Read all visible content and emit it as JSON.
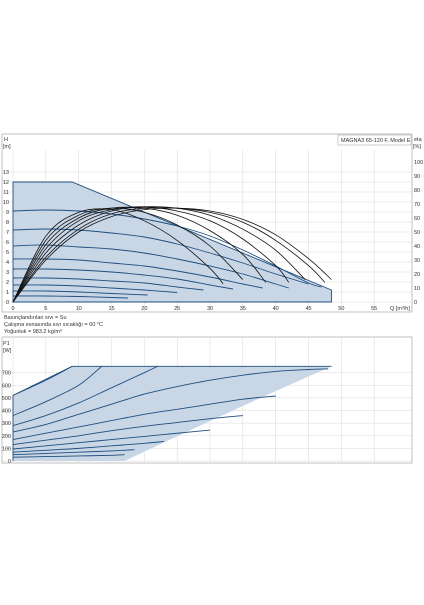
{
  "colors": {
    "fill": "#c9d6e6",
    "curve": "#1f4f7f",
    "eff": "#111111",
    "grid": "#d8d8d8",
    "frame": "#999999"
  },
  "chart_data": [
    {
      "type": "line",
      "title": "MAGNA3 65-120 F, Model E",
      "ylabel": "H",
      "yunit": "[m]",
      "y2label": "eta",
      "y2unit": "[%]",
      "xlabel": "Q [m³/h]",
      "xlim": [
        0,
        60
      ],
      "ylim": [
        0,
        14
      ],
      "y2lim": [
        0,
        100
      ],
      "x_ticks": [
        0,
        5,
        10,
        15,
        20,
        25,
        30,
        35,
        40,
        45,
        50,
        55
      ],
      "y_ticks": [
        0,
        1,
        2,
        3,
        4,
        5,
        6,
        7,
        8,
        9,
        10,
        11,
        12,
        13
      ],
      "y2_ticks": [
        0,
        10,
        20,
        30,
        40,
        50,
        60,
        70,
        80,
        90,
        100
      ],
      "grid": true,
      "envelope": {
        "x": [
          0,
          0,
          9,
          48.5,
          48.5
        ],
        "y": [
          0,
          12,
          12,
          1.2,
          0
        ]
      },
      "pump_curves": [
        {
          "x": [
            0,
            5,
            10,
            15,
            20,
            25,
            30,
            35,
            40,
            45,
            47
          ],
          "y": [
            9.1,
            9.2,
            9.1,
            8.8,
            8.3,
            7.6,
            6.6,
            5.2,
            3.6,
            1.9,
            1.5
          ]
        },
        {
          "x": [
            0,
            5,
            10,
            15,
            20,
            25,
            30,
            35,
            40,
            45
          ],
          "y": [
            7.2,
            7.3,
            7.2,
            6.9,
            6.5,
            5.8,
            4.9,
            3.9,
            2.8,
            1.8
          ]
        },
        {
          "x": [
            0,
            5,
            10,
            15,
            20,
            25,
            30,
            35,
            40,
            42
          ],
          "y": [
            5.6,
            5.7,
            5.5,
            5.3,
            4.9,
            4.3,
            3.6,
            2.8,
            1.8,
            1.4
          ]
        },
        {
          "x": [
            0,
            5,
            10,
            15,
            20,
            25,
            30,
            35,
            38
          ],
          "y": [
            4.3,
            4.3,
            4.2,
            3.9,
            3.6,
            3.1,
            2.5,
            1.8,
            1.4
          ]
        },
        {
          "x": [
            0,
            5,
            10,
            15,
            20,
            25,
            30,
            33.5
          ],
          "y": [
            3.3,
            3.3,
            3.2,
            3.0,
            2.7,
            2.3,
            1.7,
            1.3
          ]
        },
        {
          "x": [
            0,
            5,
            10,
            15,
            20,
            25,
            29
          ],
          "y": [
            2.4,
            2.4,
            2.3,
            2.1,
            1.9,
            1.5,
            1.2
          ]
        },
        {
          "x": [
            0,
            5,
            10,
            15,
            20,
            25
          ],
          "y": [
            1.7,
            1.7,
            1.6,
            1.4,
            1.2,
            0.95
          ]
        },
        {
          "x": [
            0,
            5,
            10,
            15,
            20.5
          ],
          "y": [
            1.1,
            1.1,
            1.0,
            0.85,
            0.7
          ]
        },
        {
          "x": [
            0,
            5,
            10,
            15,
            17.5
          ],
          "y": [
            0.6,
            0.6,
            0.55,
            0.45,
            0.4
          ]
        }
      ],
      "efficiency_curves": [
        {
          "x": [
            0,
            5,
            10,
            15,
            20,
            25,
            30,
            35,
            40,
            45,
            48.5
          ],
          "y": [
            0,
            30,
            50,
            61,
            66,
            67,
            65,
            59,
            48,
            31,
            16
          ]
        },
        {
          "x": [
            0,
            5,
            10,
            15,
            20,
            25,
            30,
            35,
            40,
            45,
            47.5
          ],
          "y": [
            0,
            32,
            52,
            63,
            67,
            67,
            64,
            57,
            44,
            26,
            14
          ]
        },
        {
          "x": [
            0,
            5,
            10,
            15,
            20,
            25,
            30,
            35,
            40,
            44.5
          ],
          "y": [
            0,
            35,
            55,
            65,
            68,
            67,
            62,
            52,
            37,
            16
          ]
        },
        {
          "x": [
            0,
            5,
            10,
            15,
            20,
            25,
            30,
            35,
            40,
            42
          ],
          "y": [
            0,
            38,
            58,
            66,
            68,
            65,
            58,
            45,
            26,
            14
          ]
        },
        {
          "x": [
            0,
            5,
            10,
            15,
            20,
            25,
            30,
            35,
            38.5
          ],
          "y": [
            0,
            41,
            60,
            67,
            67,
            62,
            51,
            34,
            14
          ]
        },
        {
          "x": [
            0,
            5,
            10,
            15,
            20,
            25,
            30,
            35
          ],
          "y": [
            0,
            44,
            62,
            67,
            64,
            55,
            40,
            16
          ]
        },
        {
          "x": [
            0,
            5,
            10,
            15,
            20,
            25,
            30,
            32
          ],
          "y": [
            0,
            47,
            64,
            66,
            58,
            44,
            24,
            13
          ]
        }
      ],
      "notes": [
        "Basınçlandırılan sıvı = Su",
        "Çalışma esnasında sıvı sıcaklığı = 60 °C",
        "Yoğunluk = 983.2 kg/m³"
      ]
    },
    {
      "type": "line",
      "ylabel": "P1",
      "yunit": "[W]",
      "xlim": [
        0,
        60
      ],
      "ylim": [
        0,
        840
      ],
      "y_ticks": [
        0,
        100,
        200,
        300,
        400,
        500,
        600,
        700
      ],
      "grid": true,
      "envelope": {
        "x": [
          0,
          0,
          9,
          48.5,
          17,
          0
        ],
        "y": [
          0,
          520,
          750,
          750,
          0,
          0
        ]
      },
      "power_curves": [
        {
          "x": [
            0,
            5,
            9
          ],
          "y": [
            520,
            640,
            750
          ]
        },
        {
          "x": [
            0,
            5,
            10,
            13.5
          ],
          "y": [
            360,
            470,
            600,
            750
          ]
        },
        {
          "x": [
            0,
            5,
            10,
            15,
            20,
            22
          ],
          "y": [
            280,
            360,
            460,
            580,
            700,
            750
          ]
        },
        {
          "x": [
            0,
            5,
            10,
            15,
            20,
            25,
            30,
            35,
            40,
            45,
            48
          ],
          "y": [
            230,
            290,
            370,
            450,
            530,
            590,
            640,
            680,
            710,
            725,
            730
          ]
        },
        {
          "x": [
            0,
            5,
            10,
            15,
            20,
            25,
            30,
            35,
            40
          ],
          "y": [
            170,
            220,
            270,
            320,
            370,
            410,
            450,
            490,
            515
          ]
        },
        {
          "x": [
            0,
            5,
            10,
            15,
            20,
            25,
            30,
            35
          ],
          "y": [
            130,
            165,
            200,
            240,
            275,
            305,
            335,
            360
          ]
        },
        {
          "x": [
            0,
            5,
            10,
            15,
            20,
            25,
            30
          ],
          "y": [
            95,
            120,
            145,
            170,
            195,
            220,
            245
          ]
        },
        {
          "x": [
            0,
            5,
            10,
            15,
            20,
            23
          ],
          "y": [
            70,
            85,
            100,
            120,
            140,
            155
          ]
        },
        {
          "x": [
            0,
            5,
            10,
            15,
            18.5
          ],
          "y": [
            50,
            60,
            70,
            80,
            90
          ]
        },
        {
          "x": [
            0,
            5,
            10,
            15,
            17
          ],
          "y": [
            30,
            35,
            40,
            45,
            50
          ]
        }
      ]
    }
  ]
}
